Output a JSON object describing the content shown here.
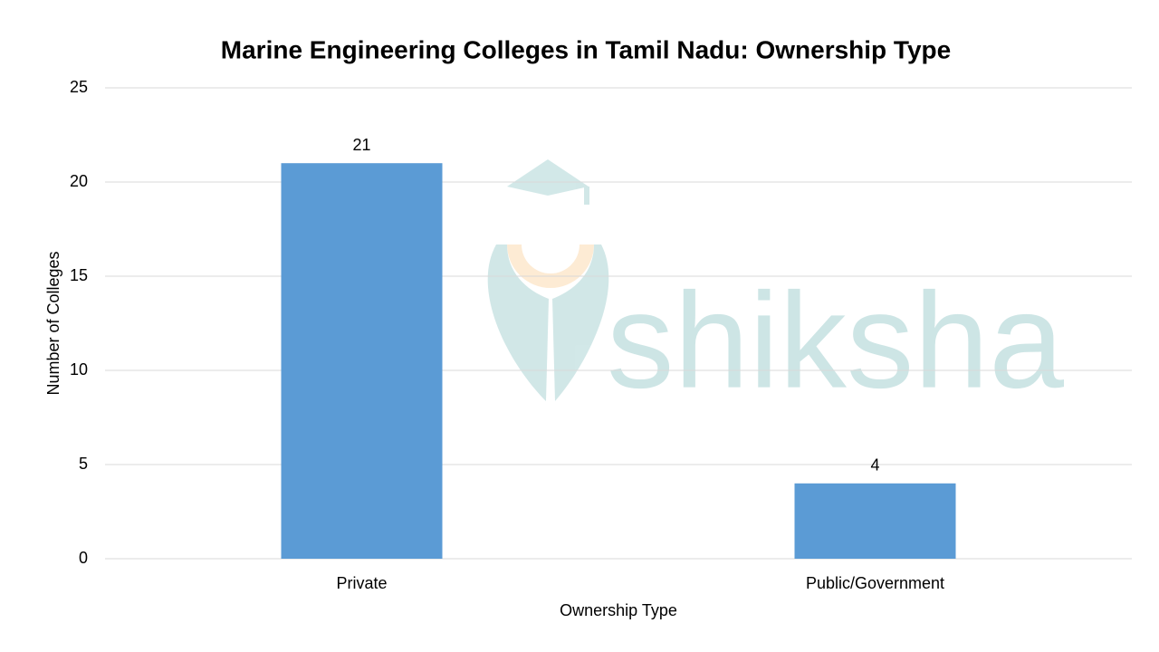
{
  "chart_data": {
    "type": "bar",
    "title": "Marine Engineering Colleges in Tamil Nadu: Ownership Type",
    "x_label": "Ownership Type",
    "y_label": "Number of Colleges",
    "categories": [
      "Private",
      "Public/Government"
    ],
    "values": [
      21,
      4
    ],
    "color": "#5b9bd5",
    "ylim": [
      0,
      25
    ],
    "yticks": [
      0,
      5,
      10,
      15,
      20,
      25
    ],
    "grid": true,
    "watermark": "shiksha"
  }
}
